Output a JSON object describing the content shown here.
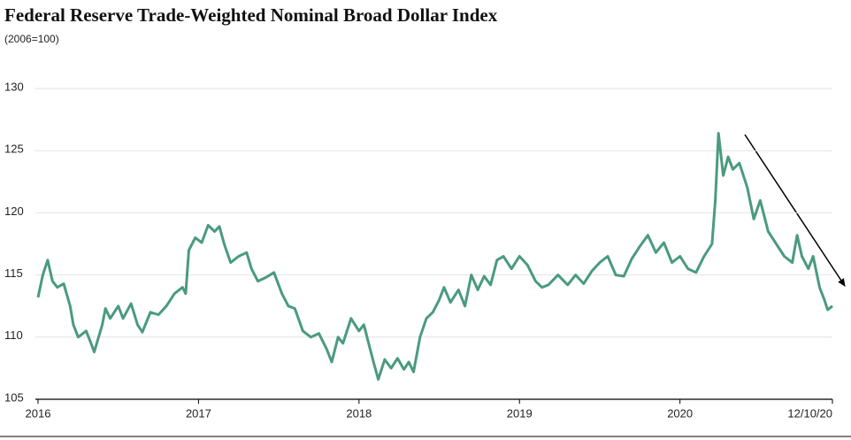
{
  "chart_data": {
    "type": "line",
    "title": "Federal Reserve Trade-Weighted Nominal Broad Dollar Index",
    "subtitle": "(2006=100)",
    "color": "#4a9a80",
    "grid": true,
    "xlim": [
      2016,
      2020.95
    ],
    "xticks": [
      2016,
      2017,
      2018,
      2019,
      2020,
      {
        "value": 2020.95,
        "label": "12/10/20"
      }
    ],
    "ylim": [
      105,
      130
    ],
    "yticks": [
      105,
      110,
      115,
      120,
      125,
      130
    ],
    "x": [
      2016.0,
      2016.03,
      2016.06,
      2016.09,
      2016.12,
      2016.16,
      2016.2,
      2016.22,
      2016.25,
      2016.3,
      2016.33,
      2016.35,
      2016.4,
      2016.42,
      2016.45,
      2016.5,
      2016.53,
      2016.58,
      2016.62,
      2016.65,
      2016.7,
      2016.75,
      2016.8,
      2016.85,
      2016.9,
      2016.92,
      2016.94,
      2016.98,
      2017.02,
      2017.06,
      2017.1,
      2017.13,
      2017.16,
      2017.2,
      2017.25,
      2017.3,
      2017.33,
      2017.37,
      2017.42,
      2017.47,
      2017.52,
      2017.56,
      2017.6,
      2017.65,
      2017.7,
      2017.75,
      2017.8,
      2017.83,
      2017.87,
      2017.9,
      2017.95,
      2018.0,
      2018.03,
      2018.06,
      2018.09,
      2018.12,
      2018.16,
      2018.2,
      2018.24,
      2018.28,
      2018.31,
      2018.34,
      2018.38,
      2018.42,
      2018.46,
      2018.5,
      2018.53,
      2018.57,
      2018.62,
      2018.66,
      2018.7,
      2018.74,
      2018.78,
      2018.82,
      2018.86,
      2018.9,
      2018.95,
      2019.0,
      2019.05,
      2019.1,
      2019.14,
      2019.18,
      2019.24,
      2019.3,
      2019.35,
      2019.4,
      2019.45,
      2019.5,
      2019.55,
      2019.6,
      2019.65,
      2019.7,
      2019.75,
      2019.8,
      2019.85,
      2019.9,
      2019.95,
      2020.0,
      2020.05,
      2020.1,
      2020.15,
      2020.2,
      2020.22,
      2020.24,
      2020.27,
      2020.3,
      2020.33,
      2020.37,
      2020.42,
      2020.46,
      2020.5,
      2020.55,
      2020.6,
      2020.65,
      2020.7,
      2020.73,
      2020.76,
      2020.8,
      2020.83,
      2020.87,
      2020.9,
      2020.92,
      2020.95
    ],
    "values": [
      113.2,
      115.0,
      116.2,
      114.5,
      114.0,
      114.3,
      112.5,
      111.0,
      110.0,
      110.5,
      109.5,
      108.8,
      111.0,
      112.3,
      111.5,
      112.5,
      111.5,
      112.7,
      111.0,
      110.4,
      112.0,
      111.8,
      112.5,
      113.5,
      114.0,
      113.5,
      117.0,
      118.0,
      117.6,
      119.0,
      118.5,
      118.9,
      117.5,
      116.0,
      116.5,
      116.8,
      115.5,
      114.5,
      114.8,
      115.2,
      113.5,
      112.5,
      112.3,
      110.5,
      110.0,
      110.3,
      109.0,
      108.0,
      110.0,
      109.5,
      111.5,
      110.5,
      111.0,
      109.5,
      108.0,
      106.6,
      108.2,
      107.5,
      108.3,
      107.4,
      108.0,
      107.2,
      110.0,
      111.5,
      112.0,
      113.0,
      114.0,
      112.8,
      113.8,
      112.5,
      115.0,
      113.8,
      114.9,
      114.2,
      116.2,
      116.5,
      115.5,
      116.5,
      115.8,
      114.5,
      114.0,
      114.2,
      115.0,
      114.2,
      115.0,
      114.3,
      115.3,
      116.0,
      116.5,
      115.0,
      114.9,
      116.3,
      117.3,
      118.2,
      116.8,
      117.6,
      116.0,
      116.5,
      115.5,
      115.2,
      116.5,
      117.5,
      121.0,
      126.4,
      123.0,
      124.5,
      123.5,
      124.0,
      122.0,
      119.5,
      121.0,
      118.5,
      117.5,
      116.5,
      116.0,
      118.2,
      116.5,
      115.5,
      116.5,
      114.0,
      113.0,
      112.2,
      112.5
    ]
  }
}
